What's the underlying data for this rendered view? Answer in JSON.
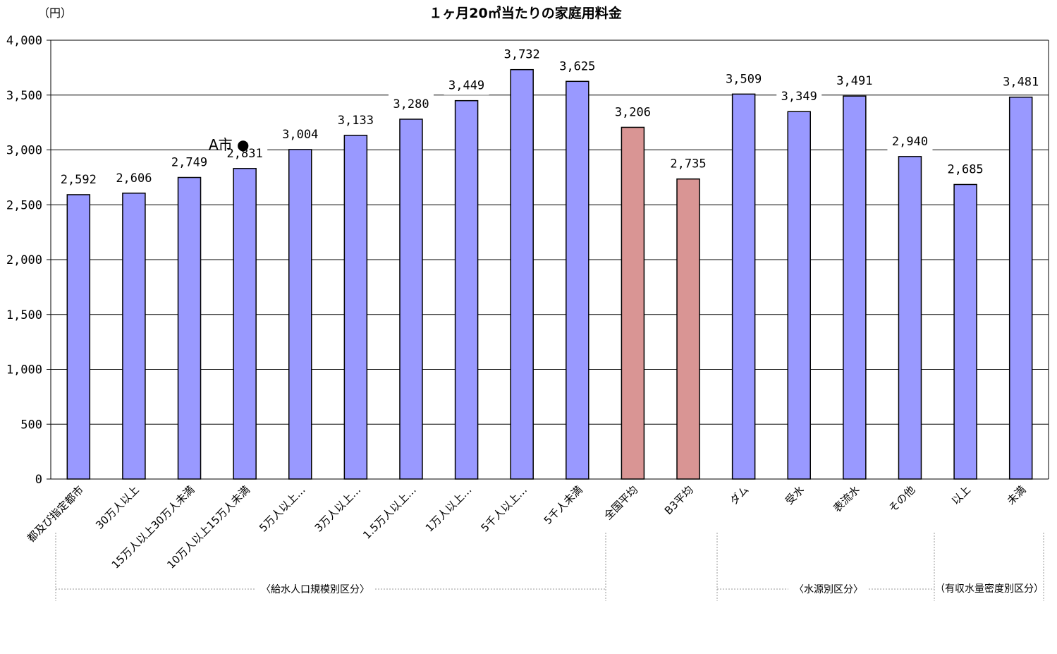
{
  "chart_data": {
    "type": "bar",
    "title": "１ヶ月20㎥当たりの家庭用料金",
    "y_unit": "（円）",
    "ylim": [
      0,
      4000
    ],
    "yticks": [
      0,
      500,
      1000,
      1500,
      2000,
      2500,
      3000,
      3500,
      4000
    ],
    "ytick_labels": [
      "0",
      "500",
      "1,000",
      "1,500",
      "2,000",
      "2,500",
      "3,000",
      "3,500",
      "4,000"
    ],
    "grid": true,
    "categories": [
      "都及び指定都市",
      "30万人以上",
      "15万人以上30万人未満",
      "10万人以上15万人未満",
      "5万人以上…",
      "3万人以上…",
      "1.5万人以上…",
      "1万人以上…",
      "5千人以上…",
      "5千人未満",
      "全国平均",
      "B3平均",
      "ダム",
      "受水",
      "表流水",
      "その他",
      "以上",
      "未満"
    ],
    "values": [
      2592,
      2606,
      2749,
      2831,
      3004,
      3133,
      3280,
      3449,
      3732,
      3625,
      3206,
      2735,
      3509,
      3349,
      3491,
      2940,
      2685,
      3481
    ],
    "value_labels": [
      "2,592",
      "2,606",
      "2,749",
      "2,831",
      "3,004",
      "3,133",
      "3,280",
      "3,449",
      "3,732",
      "3,625",
      "3,206",
      "2,735",
      "3,509",
      "3,349",
      "3,491",
      "2,940",
      "2,685",
      "3,481"
    ],
    "bar_colors": [
      "#9999ff",
      "#9999ff",
      "#9999ff",
      "#9999ff",
      "#9999ff",
      "#9999ff",
      "#9999ff",
      "#9999ff",
      "#9999ff",
      "#9999ff",
      "#d99594",
      "#d99594",
      "#9999ff",
      "#9999ff",
      "#9999ff",
      "#9999ff",
      "#9999ff",
      "#9999ff"
    ],
    "groups": [
      "〈給水人口規模別区分〉",
      "〈水源別区分〉",
      "（有収水量密度別区分）"
    ],
    "annotation": "A市 ●"
  }
}
